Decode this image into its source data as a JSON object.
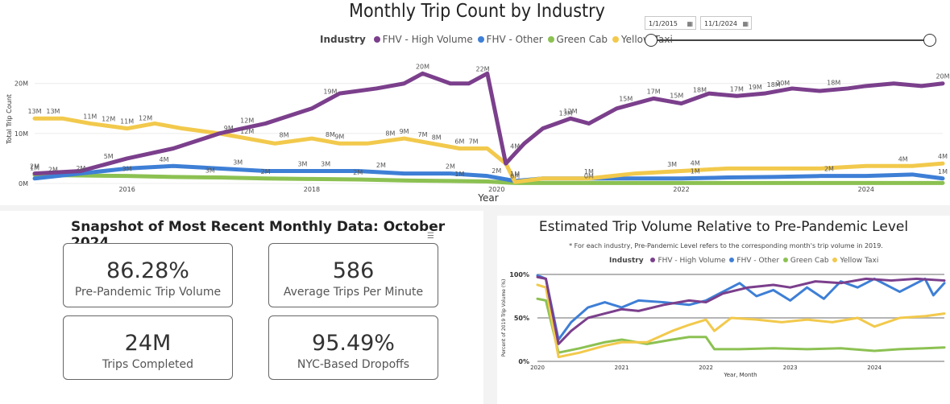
{
  "trip_chart": {
    "title": "Monthly Trip Count by Industry",
    "legend_label": "Industry",
    "date_start": "1/1/2015",
    "date_end": "11/1/2024",
    "calendar_icon": "calendar-icon",
    "xlabel": "Year",
    "ylabel": "Total Trip Count",
    "y_ticks": [
      "0M",
      "10M",
      "20M"
    ],
    "x_ticks": [
      "2016",
      "2018",
      "2020",
      "2022",
      "2024"
    ],
    "series_colors": {
      "FHV - High Volume": "#7b3f8c",
      "FHV - Other": "#3e7fd6",
      "Green Cab": "#8cc152",
      "Yellow Taxi": "#f2c94c"
    }
  },
  "snapshot": {
    "title": "Snapshot of Most Recent Monthly Data: October 2024",
    "kpis": [
      {
        "value": "86.28%",
        "label": "Pre-Pandemic Trip Volume"
      },
      {
        "value": "586",
        "label": "Average Trips Per Minute"
      },
      {
        "value": "24M",
        "label": "Trips Completed"
      },
      {
        "value": "95.49%",
        "label": "NYC-Based Dropoffs"
      }
    ]
  },
  "relative": {
    "title": "Estimated Trip Volume Relative to Pre-Pandemic Level",
    "note": "* For each industry, Pre-Pandemic Level refers to the corresponding month's trip volume in 2019.",
    "legend_label": "Industry",
    "xlabel": "Year, Month",
    "ylabel": "Percent of 2019 Trip Volume (%)",
    "y_ticks": [
      "0%",
      "50%",
      "100%"
    ],
    "x_ticks": [
      "2020",
      "2021",
      "2022",
      "2023",
      "2024"
    ]
  },
  "chart_data": [
    {
      "type": "line",
      "title": "Monthly Trip Count by Industry",
      "xlabel": "Year",
      "ylabel": "Total Trip Count",
      "unit": "millions",
      "xlim": [
        2015.0,
        2024.83
      ],
      "ylim": [
        0,
        24
      ],
      "series": [
        {
          "name": "FHV - High Volume",
          "color": "#7b3f8c",
          "x": [
            2015.0,
            2015.5,
            2016.0,
            2016.5,
            2017.0,
            2017.5,
            2018.0,
            2018.3,
            2018.7,
            2019.0,
            2019.2,
            2019.35,
            2019.5,
            2019.7,
            2019.9,
            2020.1,
            2020.2,
            2020.3,
            2020.5,
            2020.8,
            2021.0,
            2021.3,
            2021.7,
            2022.0,
            2022.3,
            2022.6,
            2022.9,
            2023.2,
            2023.5,
            2023.8,
            2024.0,
            2024.3,
            2024.6,
            2024.83
          ],
          "values": [
            2,
            2.5,
            5,
            7,
            10,
            12,
            15,
            18,
            19,
            20,
            22,
            21,
            20,
            20,
            22,
            4,
            6,
            8,
            11,
            13,
            12,
            15,
            17,
            16,
            18,
            17.5,
            18,
            19,
            18.5,
            19,
            19.5,
            20,
            19.5,
            20
          ]
        },
        {
          "name": "FHV - Other",
          "color": "#3e7fd6",
          "x": [
            2015.0,
            2015.5,
            2016.0,
            2016.5,
            2017.0,
            2017.5,
            2018.0,
            2018.5,
            2019.0,
            2019.5,
            2019.9,
            2020.2,
            2020.5,
            2021.0,
            2021.5,
            2022.0,
            2022.5,
            2023.0,
            2023.5,
            2024.0,
            2024.5,
            2024.83
          ],
          "values": [
            1,
            2,
            3,
            3.5,
            3,
            2.5,
            2.5,
            2.5,
            2,
            2,
            1.5,
            0.5,
            1,
            1,
            1,
            1,
            1.2,
            1.3,
            1.5,
            1.5,
            1.8,
            1
          ]
        },
        {
          "name": "Green Cab",
          "color": "#8cc152",
          "x": [
            2015.0,
            2015.5,
            2016.0,
            2016.5,
            2017.0,
            2017.5,
            2018.0,
            2018.5,
            2019.0,
            2019.5,
            2019.9,
            2020.2,
            2021.0,
            2022.0,
            2023.0,
            2024.0,
            2024.83
          ],
          "values": [
            1.7,
            1.6,
            1.5,
            1.3,
            1.2,
            1,
            0.9,
            0.8,
            0.6,
            0.5,
            0.4,
            0.1,
            0.1,
            0.1,
            0.1,
            0.1,
            0.1
          ]
        },
        {
          "name": "Yellow Taxi",
          "color": "#f2c94c",
          "x": [
            2015.0,
            2015.3,
            2015.6,
            2016.0,
            2016.3,
            2016.6,
            2017.0,
            2017.3,
            2017.6,
            2018.0,
            2018.3,
            2018.6,
            2019.0,
            2019.3,
            2019.6,
            2019.9,
            2020.1,
            2020.2,
            2020.5,
            2021.0,
            2021.5,
            2022.0,
            2022.5,
            2023.0,
            2023.5,
            2024.0,
            2024.5,
            2024.83
          ],
          "values": [
            13,
            13,
            12,
            11,
            12,
            11,
            10,
            9,
            8,
            9,
            8,
            8,
            9,
            8,
            7,
            7,
            4,
            0.3,
            1,
            1,
            2,
            2.5,
            3,
            3,
            3,
            3.5,
            3.5,
            4
          ]
        }
      ],
      "data_labels": [
        {
          "series": "FHV - High Volume",
          "x": 2015.0,
          "text": "2M"
        },
        {
          "series": "FHV - High Volume",
          "x": 2015.8,
          "text": "5M"
        },
        {
          "series": "FHV - High Volume",
          "x": 2017.3,
          "text": "12M"
        },
        {
          "series": "FHV - High Volume",
          "x": 2018.2,
          "text": "19M"
        },
        {
          "series": "FHV - High Volume",
          "x": 2019.2,
          "text": "20M"
        },
        {
          "series": "FHV - High Volume",
          "x": 2019.85,
          "text": "22M"
        },
        {
          "series": "FHV - High Volume",
          "x": 2020.2,
          "text": "4M"
        },
        {
          "series": "FHV - High Volume",
          "x": 2020.75,
          "text": "13M"
        },
        {
          "series": "FHV - High Volume",
          "x": 2020.8,
          "text": "12M"
        },
        {
          "series": "FHV - High Volume",
          "x": 2021.4,
          "text": "15M"
        },
        {
          "series": "FHV - High Volume",
          "x": 2021.7,
          "text": "17M"
        },
        {
          "series": "FHV - High Volume",
          "x": 2021.95,
          "text": "15M"
        },
        {
          "series": "FHV - High Volume",
          "x": 2022.2,
          "text": "18M"
        },
        {
          "series": "FHV - High Volume",
          "x": 2022.6,
          "text": "17M"
        },
        {
          "series": "FHV - High Volume",
          "x": 2022.8,
          "text": "19M"
        },
        {
          "series": "FHV - High Volume",
          "x": 2023.0,
          "text": "18M"
        },
        {
          "series": "FHV - High Volume",
          "x": 2023.1,
          "text": "20M"
        },
        {
          "series": "FHV - High Volume",
          "x": 2023.65,
          "text": "18M"
        },
        {
          "series": "FHV - High Volume",
          "x": 2024.83,
          "text": "20M"
        },
        {
          "series": "Yellow Taxi",
          "x": 2015.0,
          "text": "13M"
        },
        {
          "series": "Yellow Taxi",
          "x": 2015.2,
          "text": "13M"
        },
        {
          "series": "Yellow Taxi",
          "x": 2015.6,
          "text": "11M"
        },
        {
          "series": "Yellow Taxi",
          "x": 2015.8,
          "text": "12M"
        },
        {
          "series": "Yellow Taxi",
          "x": 2016.0,
          "text": "11M"
        },
        {
          "series": "Yellow Taxi",
          "x": 2016.2,
          "text": "12M"
        },
        {
          "series": "Yellow Taxi",
          "x": 2017.3,
          "text": "12M"
        },
        {
          "series": "Yellow Taxi",
          "x": 2017.1,
          "text": "9M"
        },
        {
          "series": "Yellow Taxi",
          "x": 2017.7,
          "text": "8M"
        },
        {
          "series": "Yellow Taxi",
          "x": 2018.2,
          "text": "8M"
        },
        {
          "series": "Yellow Taxi",
          "x": 2018.3,
          "text": "9M"
        },
        {
          "series": "Yellow Taxi",
          "x": 2018.85,
          "text": "8M"
        },
        {
          "series": "Yellow Taxi",
          "x": 2019.0,
          "text": "9M"
        },
        {
          "series": "Yellow Taxi",
          "x": 2019.2,
          "text": "7M"
        },
        {
          "series": "Yellow Taxi",
          "x": 2019.35,
          "text": "8M"
        },
        {
          "series": "Yellow Taxi",
          "x": 2019.75,
          "text": "7M"
        },
        {
          "series": "Yellow Taxi",
          "x": 2019.6,
          "text": "6M"
        },
        {
          "series": "Yellow Taxi",
          "x": 2021.9,
          "text": "3M"
        },
        {
          "series": "Yellow Taxi",
          "x": 2022.15,
          "text": "4M"
        },
        {
          "series": "Yellow Taxi",
          "x": 2024.4,
          "text": "4M"
        },
        {
          "series": "Yellow Taxi",
          "x": 2024.83,
          "text": "4M"
        },
        {
          "series": "FHV - Other",
          "x": 2015.2,
          "text": "2M"
        },
        {
          "series": "FHV - Other",
          "x": 2016.4,
          "text": "4M"
        },
        {
          "series": "FHV - Other",
          "x": 2017.2,
          "text": "3M"
        },
        {
          "series": "FHV - Other",
          "x": 2017.9,
          "text": "3M"
        },
        {
          "series": "FHV - Other",
          "x": 2018.15,
          "text": "3M"
        },
        {
          "series": "FHV - Other",
          "x": 2018.75,
          "text": "2M"
        },
        {
          "series": "FHV - Other",
          "x": 2019.5,
          "text": "2M"
        },
        {
          "series": "FHV - Other",
          "x": 2020.0,
          "text": "2M"
        },
        {
          "series": "FHV - Other",
          "x": 2020.2,
          "text": "1M"
        },
        {
          "series": "FHV - Other",
          "x": 2021.0,
          "text": "1M"
        },
        {
          "series": "FHV - Other",
          "x": 2022.15,
          "text": "1M"
        },
        {
          "series": "FHV - Other",
          "x": 2023.6,
          "text": "2M"
        },
        {
          "series": "FHV - Other",
          "x": 2024.83,
          "text": "1M"
        },
        {
          "series": "Green Cab",
          "x": 2015.0,
          "text": "1M"
        },
        {
          "series": "Green Cab",
          "x": 2015.5,
          "text": "2M"
        },
        {
          "series": "Green Cab",
          "x": 2016.0,
          "text": "3M"
        },
        {
          "series": "Green Cab",
          "x": 2016.9,
          "text": "3M"
        },
        {
          "series": "Green Cab",
          "x": 2017.5,
          "text": "2M"
        },
        {
          "series": "Green Cab",
          "x": 2018.5,
          "text": "2M"
        },
        {
          "series": "Green Cab",
          "x": 2019.6,
          "text": "1M"
        },
        {
          "series": "Green Cab",
          "x": 2020.2,
          "text": "0M"
        },
        {
          "series": "Green Cab",
          "x": 2021.0,
          "text": "0M"
        }
      ]
    },
    {
      "type": "line",
      "title": "Estimated Trip Volume Relative to Pre-Pandemic Level",
      "xlabel": "Year, Month",
      "ylabel": "Percent of 2019 Trip Volume (%)",
      "xlim": [
        2020.0,
        2024.83
      ],
      "ylim": [
        0,
        100
      ],
      "series": [
        {
          "name": "FHV - High Volume",
          "color": "#7b3f8c",
          "x": [
            2020.0,
            2020.1,
            2020.25,
            2020.4,
            2020.6,
            2020.8,
            2021.0,
            2021.2,
            2021.5,
            2021.8,
            2022.0,
            2022.2,
            2022.5,
            2022.8,
            2023.0,
            2023.3,
            2023.6,
            2023.9,
            2024.2,
            2024.5,
            2024.83
          ],
          "values": [
            97,
            95,
            20,
            35,
            50,
            55,
            60,
            58,
            65,
            70,
            68,
            78,
            85,
            88,
            85,
            92,
            90,
            95,
            93,
            95,
            93
          ]
        },
        {
          "name": "FHV - Other",
          "color": "#3e7fd6",
          "x": [
            2020.0,
            2020.1,
            2020.25,
            2020.4,
            2020.6,
            2020.8,
            2021.0,
            2021.2,
            2021.5,
            2021.8,
            2022.0,
            2022.2,
            2022.4,
            2022.6,
            2022.8,
            2023.0,
            2023.2,
            2023.4,
            2023.6,
            2023.8,
            2024.0,
            2024.3,
            2024.6,
            2024.7,
            2024.83
          ],
          "values": [
            99,
            95,
            25,
            45,
            62,
            68,
            62,
            70,
            68,
            65,
            70,
            80,
            90,
            75,
            82,
            70,
            85,
            72,
            92,
            85,
            95,
            80,
            95,
            76,
            90
          ]
        },
        {
          "name": "Green Cab",
          "color": "#8cc152",
          "x": [
            2020.0,
            2020.1,
            2020.25,
            2020.5,
            2020.8,
            2021.0,
            2021.3,
            2021.6,
            2021.8,
            2022.0,
            2022.1,
            2022.4,
            2022.8,
            2023.2,
            2023.6,
            2024.0,
            2024.3,
            2024.6,
            2024.83
          ],
          "values": [
            72,
            70,
            10,
            15,
            22,
            25,
            20,
            25,
            28,
            28,
            14,
            14,
            15,
            14,
            15,
            12,
            14,
            15,
            16
          ]
        },
        {
          "name": "Yellow Taxi",
          "color": "#f2c94c",
          "x": [
            2020.0,
            2020.1,
            2020.25,
            2020.5,
            2020.8,
            2021.0,
            2021.3,
            2021.6,
            2021.8,
            2022.0,
            2022.1,
            2022.3,
            2022.6,
            2022.9,
            2023.2,
            2023.5,
            2023.8,
            2024.0,
            2024.3,
            2024.6,
            2024.83
          ],
          "values": [
            88,
            85,
            5,
            10,
            18,
            22,
            22,
            35,
            42,
            48,
            35,
            50,
            48,
            45,
            48,
            45,
            50,
            40,
            50,
            52,
            55
          ]
        }
      ]
    }
  ]
}
